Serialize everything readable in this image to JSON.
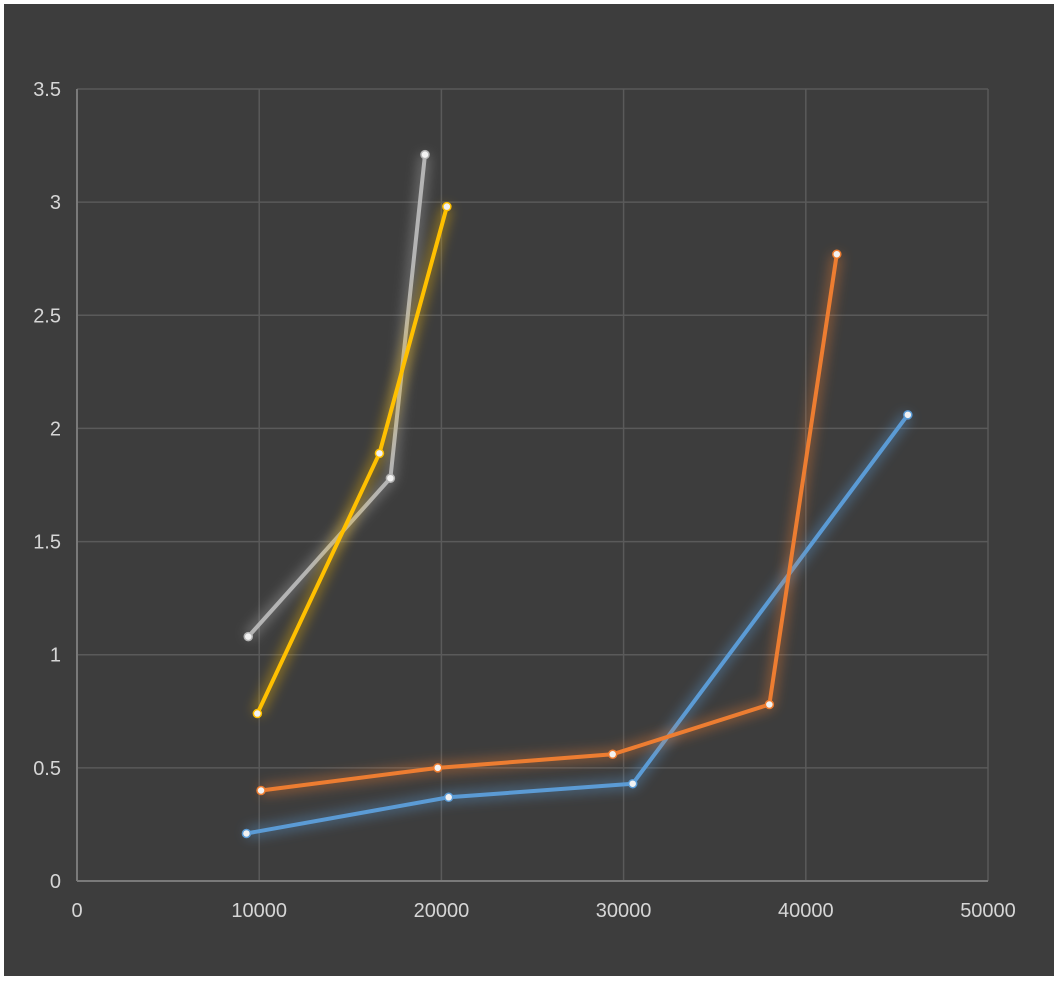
{
  "chart_data": {
    "type": "scatter",
    "title": "",
    "xlabel": "",
    "ylabel": "",
    "xlim": [
      0,
      50000
    ],
    "ylim": [
      0,
      3.5
    ],
    "x_ticks": [
      0,
      10000,
      20000,
      30000,
      40000,
      50000
    ],
    "y_ticks": [
      0,
      0.5,
      1,
      1.5,
      2,
      2.5,
      3,
      3.5
    ],
    "x_tick_labels": [
      "0",
      "10000",
      "20000",
      "30000",
      "40000",
      "50000"
    ],
    "y_tick_labels": [
      "0",
      "0.5",
      "1",
      "1.5",
      "2",
      "2.5",
      "3",
      "3.5"
    ],
    "grid": true,
    "legend": "none",
    "background": "#3d3d3d",
    "series": [
      {
        "color": "#5b9bd5",
        "points": [
          [
            9300,
            0.21
          ],
          [
            20400,
            0.37
          ],
          [
            30500,
            0.43
          ],
          [
            45600,
            2.06
          ]
        ]
      },
      {
        "color": "#ed7d31",
        "points": [
          [
            10100,
            0.4
          ],
          [
            19800,
            0.5
          ],
          [
            29400,
            0.56
          ],
          [
            38000,
            0.78
          ],
          [
            41700,
            2.77
          ]
        ]
      },
      {
        "color": "#b4b4b4",
        "points": [
          [
            9400,
            1.08
          ],
          [
            17200,
            1.78
          ],
          [
            19100,
            3.21
          ]
        ]
      },
      {
        "color": "#ffc000",
        "points": [
          [
            9900,
            0.74
          ],
          [
            16600,
            1.89
          ],
          [
            20300,
            2.98
          ]
        ]
      }
    ]
  }
}
